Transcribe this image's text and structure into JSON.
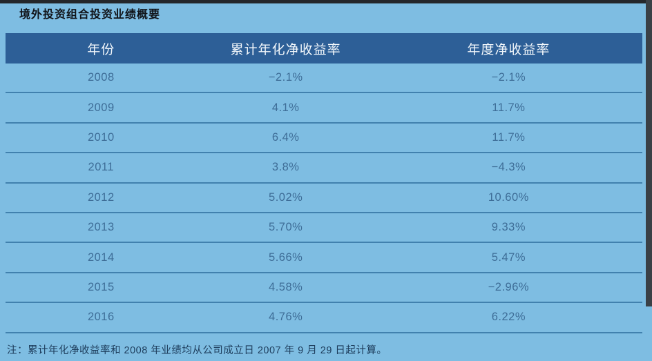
{
  "page": {
    "title": "境外投资组合投资业绩概要",
    "note": "注：累计年化净收益率和 2008 年业绩均从公司成立日 2007 年 9 月 29 日起计算。"
  },
  "table": {
    "columns": {
      "year": "年份",
      "cumulative": "累计年化净收益率",
      "annual": "年度净收益率"
    },
    "rows": [
      {
        "year": "2008",
        "cumulative": "−2.1%",
        "annual": "−2.1%"
      },
      {
        "year": "2009",
        "cumulative": "4.1%",
        "annual": "11.7%"
      },
      {
        "year": "2010",
        "cumulative": "6.4%",
        "annual": "11.7%"
      },
      {
        "year": "2011",
        "cumulative": "3.8%",
        "annual": "−4.3%"
      },
      {
        "year": "2012",
        "cumulative": "5.02%",
        "annual": "10.60%"
      },
      {
        "year": "2013",
        "cumulative": "5.70%",
        "annual": "9.33%"
      },
      {
        "year": "2014",
        "cumulative": "5.66%",
        "annual": "5.47%"
      },
      {
        "year": "2015",
        "cumulative": "4.58%",
        "annual": "−2.96%"
      },
      {
        "year": "2016",
        "cumulative": "4.76%",
        "annual": "6.22%"
      }
    ]
  },
  "colors": {
    "page_background": "#7ebde2",
    "header_background": "#2d5f97",
    "header_text": "#f2f7fb",
    "row_text": "#3e6d97",
    "separator_line": "#4181ae",
    "title_text": "#101318",
    "note_text": "#1d3d5c",
    "top_edge_bar": "#24272b",
    "right_edge_bar": "#3a4046"
  }
}
